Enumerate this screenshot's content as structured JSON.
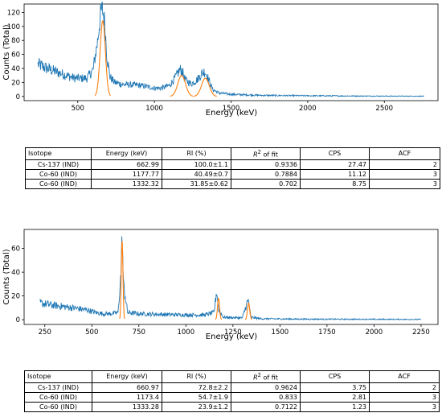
{
  "colors": {
    "spectrum": "#1f77b4",
    "fit": "#ff7f0e"
  },
  "chart_data": [
    {
      "type": "line",
      "xlabel": "Energy (keV)",
      "ylabel": "Counts (Total)",
      "xlim": [
        150,
        2850
      ],
      "ylim": [
        -6,
        132
      ],
      "xticks": [
        500,
        1000,
        1500,
        2000,
        2500
      ],
      "yticks": [
        0,
        20,
        40,
        60,
        80,
        100,
        120
      ],
      "x_range": [
        240,
        2760
      ],
      "noise": 4,
      "series": [
        {
          "role": "spectrum",
          "x": [
            240,
            300,
            400,
            480,
            560,
            600,
            630,
            650,
            660,
            675,
            690,
            710,
            740,
            800,
            900,
            1000,
            1050,
            1100,
            1140,
            1165,
            1180,
            1200,
            1240,
            1280,
            1310,
            1330,
            1350,
            1380,
            1420,
            1500,
            1700,
            2000,
            2400,
            2760
          ],
          "y": [
            46,
            40,
            32,
            26,
            26,
            38,
            80,
            120,
            125,
            108,
            58,
            28,
            20,
            17,
            16,
            12,
            12,
            16,
            28,
            38,
            37,
            24,
            18,
            24,
            33,
            36,
            26,
            10,
            5,
            3,
            1.5,
            1,
            0.5,
            0.3
          ]
        },
        {
          "role": "fit",
          "peaks": [
            {
              "center": 662.99,
              "height": 108,
              "sigma": 17
            },
            {
              "center": 1177.77,
              "height": 30,
              "sigma": 25
            },
            {
              "center": 1332.32,
              "height": 26,
              "sigma": 25
            }
          ]
        }
      ]
    },
    {
      "type": "line",
      "xlabel": "Energy (keV)",
      "ylabel": "Counts (Total)",
      "xlim": [
        140,
        2340
      ],
      "ylim": [
        -4,
        76
      ],
      "xticks": [
        250,
        500,
        750,
        1000,
        1250,
        1500,
        1750,
        2000,
        2250
      ],
      "yticks": [
        0,
        20,
        40,
        60
      ],
      "x_range": [
        225,
        2250
      ],
      "noise": 3.5,
      "series": [
        {
          "role": "spectrum",
          "x": [
            225,
            300,
            400,
            480,
            520,
            560,
            600,
            640,
            655,
            661,
            668,
            690,
            750,
            850,
            1000,
            1100,
            1150,
            1163,
            1175,
            1200,
            1300,
            1325,
            1333,
            1345,
            1400,
            1600,
            2000,
            2250
          ],
          "y": [
            14,
            12,
            10,
            8,
            6,
            5,
            5,
            6,
            40,
            72,
            30,
            6,
            5,
            4.5,
            4,
            4,
            6,
            24,
            8,
            2,
            1.5,
            14,
            16,
            2,
            0.8,
            0.5,
            0.3,
            0.2
          ]
        },
        {
          "role": "fit",
          "peaks": [
            {
              "center": 660.97,
              "height": 66,
              "sigma": 4.5
            },
            {
              "center": 1173.4,
              "height": 18,
              "sigma": 5.5
            },
            {
              "center": 1333.28,
              "height": 14,
              "sigma": 6
            }
          ]
        }
      ]
    }
  ],
  "tables": [
    {
      "headers": [
        "Isotope",
        "Energy (keV)",
        "RI (%)",
        "R",
        "2",
        " of fit",
        "CPS",
        "ACF"
      ],
      "rows": [
        [
          "Cs-137 (IND)",
          "662.99",
          "100.0±1.1",
          "0.9336",
          "27.47",
          "2"
        ],
        [
          "Co-60 (IND)",
          "1177.77",
          "40.49±0.7",
          "0.7884",
          "11.12",
          "3"
        ],
        [
          "Co-60 (IND)",
          "1332.32",
          "31.85±0.62",
          "0.702",
          "8.75",
          "3"
        ]
      ]
    },
    {
      "headers": [
        "Isotope",
        "Energy (keV)",
        "RI (%)",
        "R",
        "2",
        " of fit",
        "CPS",
        "ACF"
      ],
      "rows": [
        [
          "Cs-137 (IND)",
          "660.97",
          "72.8±2.2",
          "0.9624",
          "3.75",
          "2"
        ],
        [
          "Co-60 (IND)",
          "1173.4",
          "54.7±1.9",
          "0.833",
          "2.81",
          "3"
        ],
        [
          "Co-60 (IND)",
          "1333.28",
          "23.9±1.2",
          "0.7122",
          "1.23",
          "3"
        ]
      ]
    }
  ]
}
